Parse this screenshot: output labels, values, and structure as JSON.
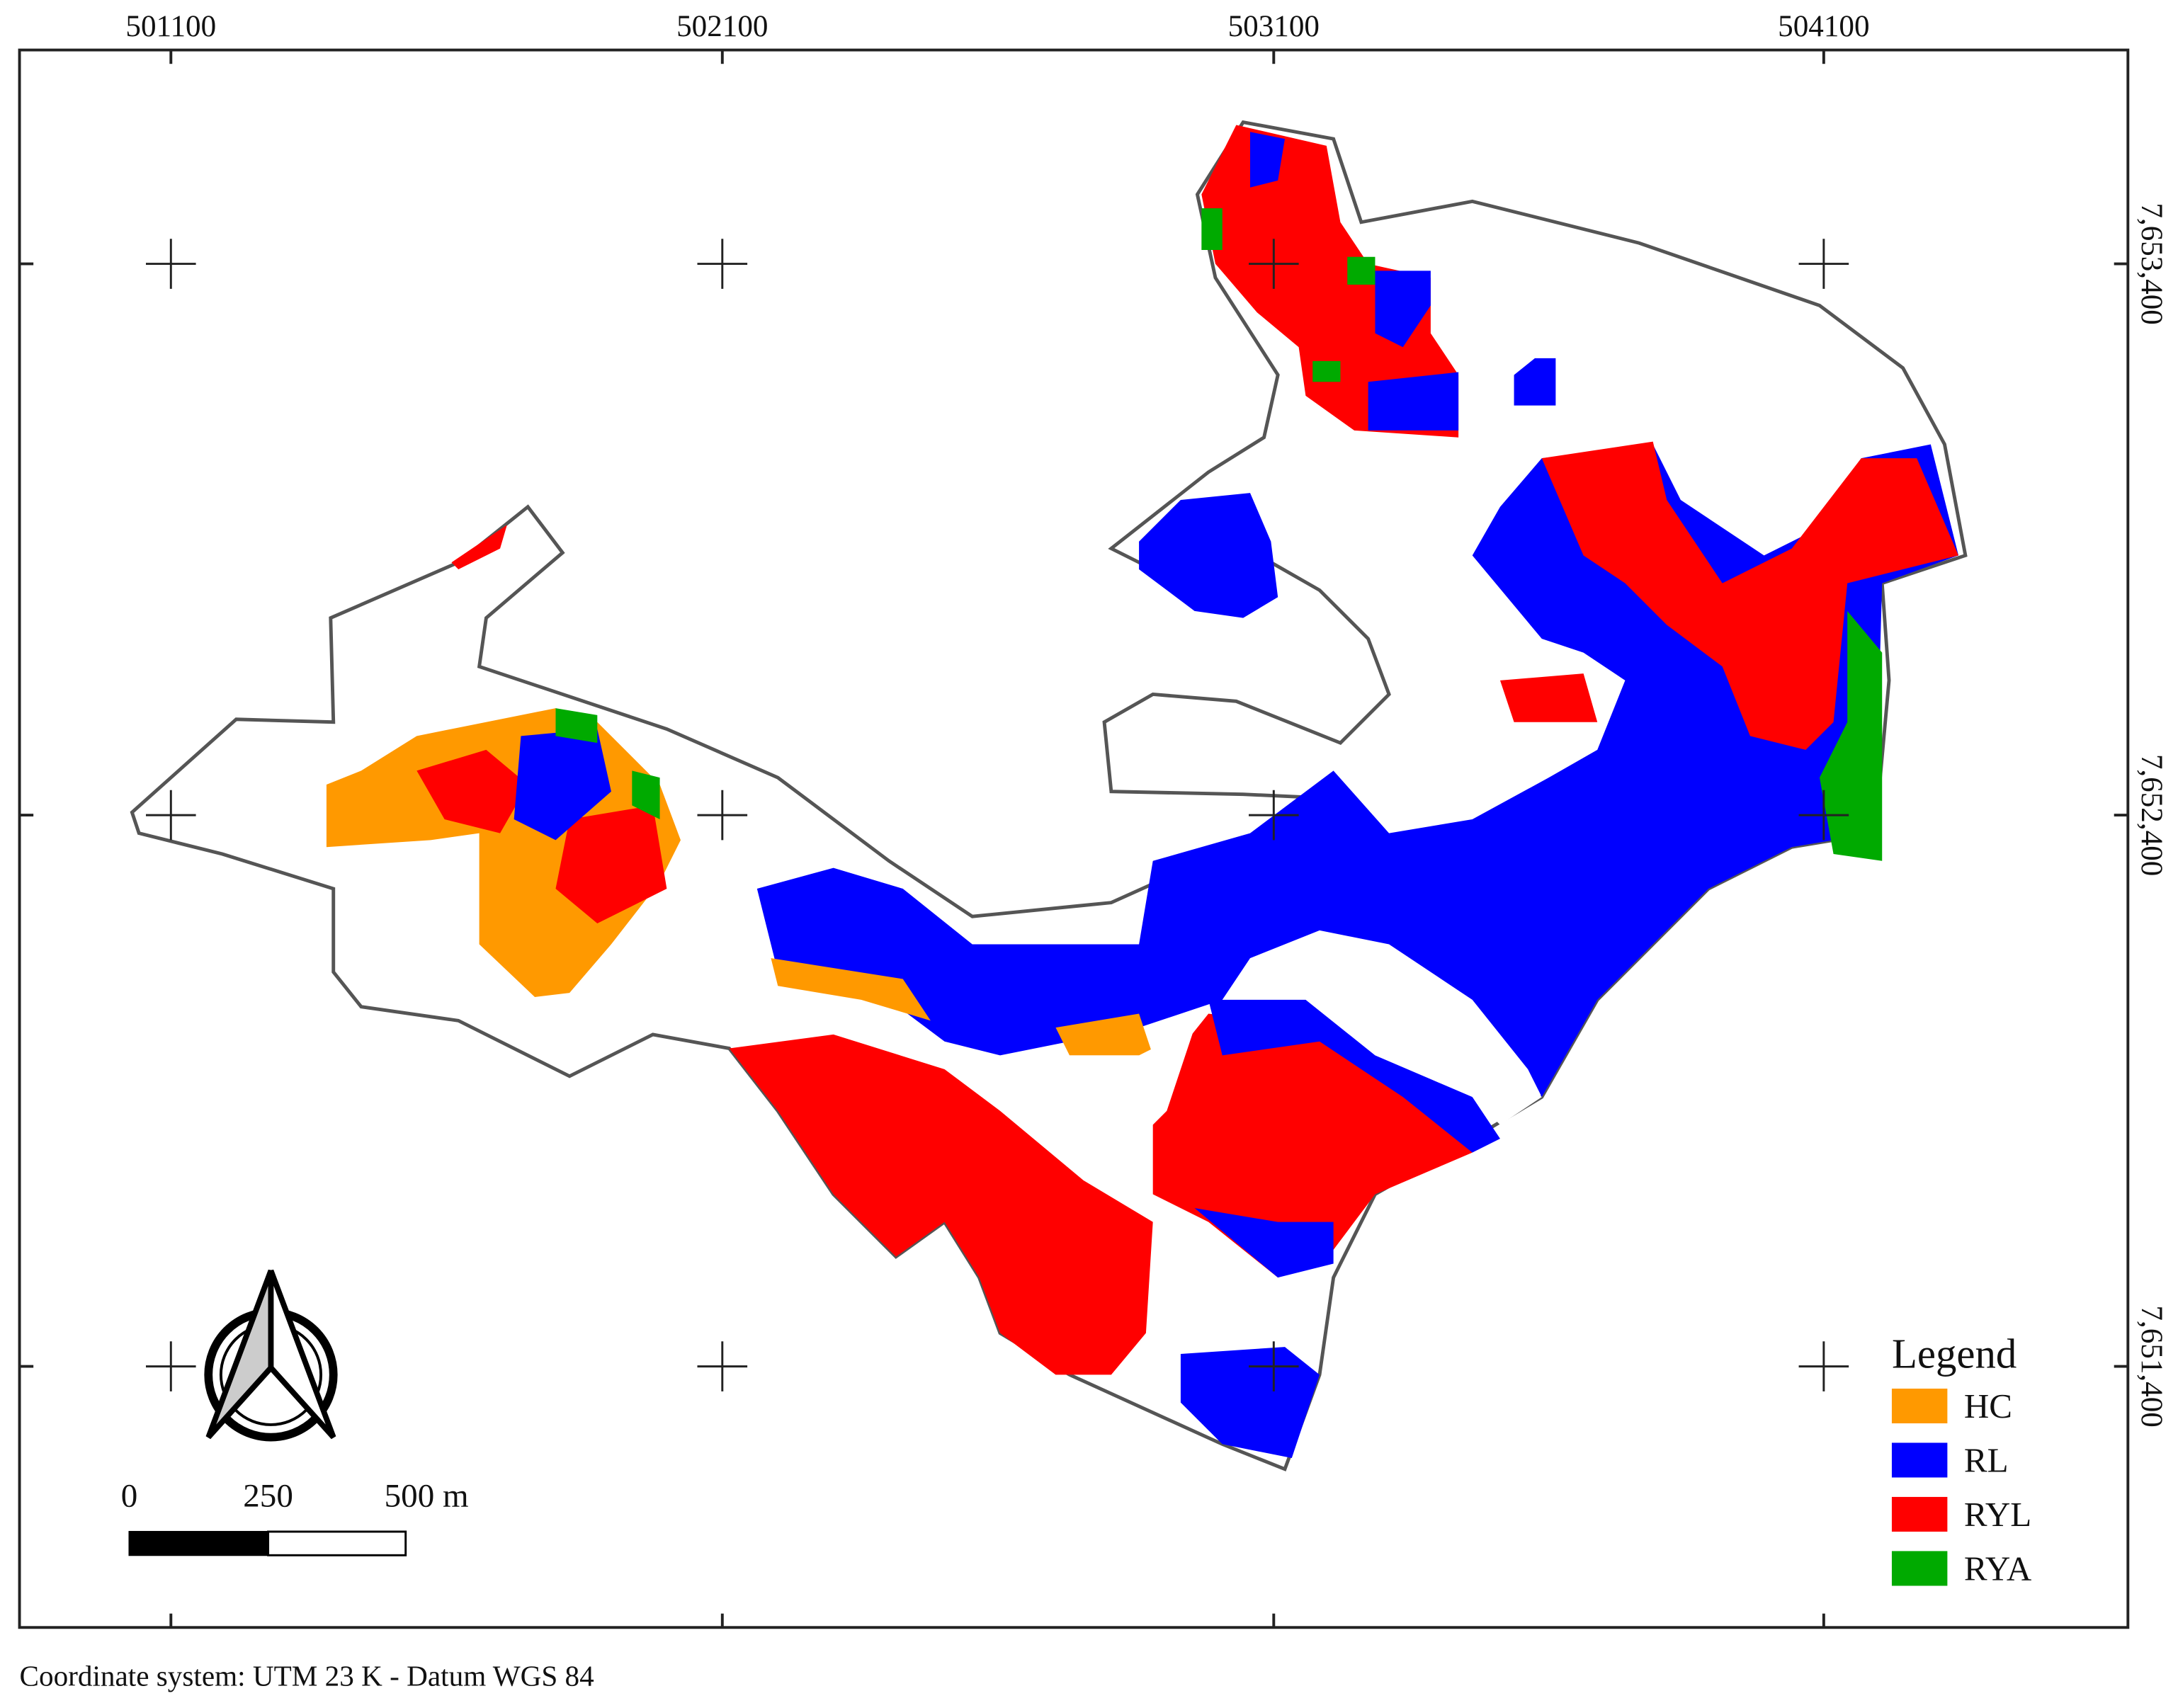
{
  "grid_labels": {
    "x": [
      "501100",
      "502100",
      "503100",
      "504100"
    ],
    "y": [
      "7,653,400",
      "7,652,400",
      "7,651,400"
    ]
  },
  "legend": {
    "title": "Legend",
    "items": [
      {
        "label": "HC",
        "color": "#ff9900"
      },
      {
        "label": "RL",
        "color": "#0000ff"
      },
      {
        "label": "RYL",
        "color": "#ff0000"
      },
      {
        "label": "RYA",
        "color": "#00aa00"
      }
    ]
  },
  "scale_bar": {
    "labels": [
      "0",
      "250",
      "500 m"
    ]
  },
  "footer": "Coordinate system: UTM 23 K - Datum WGS 84"
}
